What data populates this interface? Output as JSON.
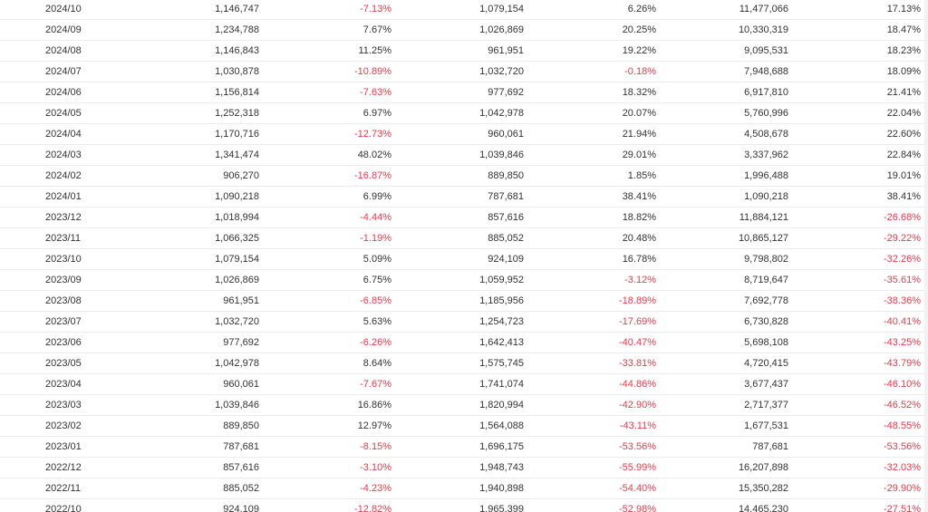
{
  "colors": {
    "negative": "#f03a4a",
    "text": "#333333",
    "border": "#ececec"
  },
  "rows": [
    [
      "2024/10",
      "1,146,747",
      "-7.13%",
      "1,079,154",
      "6.26%",
      "11,477,066",
      "17.13%"
    ],
    [
      "2024/09",
      "1,234,788",
      "7.67%",
      "1,026,869",
      "20.25%",
      "10,330,319",
      "18.47%"
    ],
    [
      "2024/08",
      "1,146,843",
      "11.25%",
      "961,951",
      "19.22%",
      "9,095,531",
      "18.23%"
    ],
    [
      "2024/07",
      "1,030,878",
      "-10.89%",
      "1,032,720",
      "-0.18%",
      "7,948,688",
      "18.09%"
    ],
    [
      "2024/06",
      "1,156,814",
      "-7.63%",
      "977,692",
      "18.32%",
      "6,917,810",
      "21.41%"
    ],
    [
      "2024/05",
      "1,252,318",
      "6.97%",
      "1,042,978",
      "20.07%",
      "5,760,996",
      "22.04%"
    ],
    [
      "2024/04",
      "1,170,716",
      "-12.73%",
      "960,061",
      "21.94%",
      "4,508,678",
      "22.60%"
    ],
    [
      "2024/03",
      "1,341,474",
      "48.02%",
      "1,039,846",
      "29.01%",
      "3,337,962",
      "22.84%"
    ],
    [
      "2024/02",
      "906,270",
      "-16.87%",
      "889,850",
      "1.85%",
      "1,996,488",
      "19.01%"
    ],
    [
      "2024/01",
      "1,090,218",
      "6.99%",
      "787,681",
      "38.41%",
      "1,090,218",
      "38.41%"
    ],
    [
      "2023/12",
      "1,018,994",
      "-4.44%",
      "857,616",
      "18.82%",
      "11,884,121",
      "-26.68%"
    ],
    [
      "2023/11",
      "1,066,325",
      "-1.19%",
      "885,052",
      "20.48%",
      "10,865,127",
      "-29.22%"
    ],
    [
      "2023/10",
      "1,079,154",
      "5.09%",
      "924,109",
      "16.78%",
      "9,798,802",
      "-32.26%"
    ],
    [
      "2023/09",
      "1,026,869",
      "6.75%",
      "1,059,952",
      "-3.12%",
      "8,719,647",
      "-35.61%"
    ],
    [
      "2023/08",
      "961,951",
      "-6.85%",
      "1,185,956",
      "-18.89%",
      "7,692,778",
      "-38.36%"
    ],
    [
      "2023/07",
      "1,032,720",
      "5.63%",
      "1,254,723",
      "-17.69%",
      "6,730,828",
      "-40.41%"
    ],
    [
      "2023/06",
      "977,692",
      "-6.26%",
      "1,642,413",
      "-40.47%",
      "5,698,108",
      "-43.25%"
    ],
    [
      "2023/05",
      "1,042,978",
      "8.64%",
      "1,575,745",
      "-33.81%",
      "4,720,415",
      "-43.79%"
    ],
    [
      "2023/04",
      "960,061",
      "-7.67%",
      "1,741,074",
      "-44.86%",
      "3,677,437",
      "-46.10%"
    ],
    [
      "2023/03",
      "1,039,846",
      "16.86%",
      "1,820,994",
      "-42.90%",
      "2,717,377",
      "-46.52%"
    ],
    [
      "2023/02",
      "889,850",
      "12.97%",
      "1,564,088",
      "-43.11%",
      "1,677,531",
      "-48.55%"
    ],
    [
      "2023/01",
      "787,681",
      "-8.15%",
      "1,696,175",
      "-53.56%",
      "787,681",
      "-53.56%"
    ],
    [
      "2022/12",
      "857,616",
      "-3.10%",
      "1,948,743",
      "-55.99%",
      "16,207,898",
      "-32.03%"
    ],
    [
      "2022/11",
      "885,052",
      "-4.23%",
      "1,940,898",
      "-54.40%",
      "15,350,282",
      "-29.90%"
    ],
    [
      "2022/10",
      "924,109",
      "-12.82%",
      "1,965,399",
      "-52.98%",
      "14,465,230",
      "-27.51%"
    ]
  ]
}
